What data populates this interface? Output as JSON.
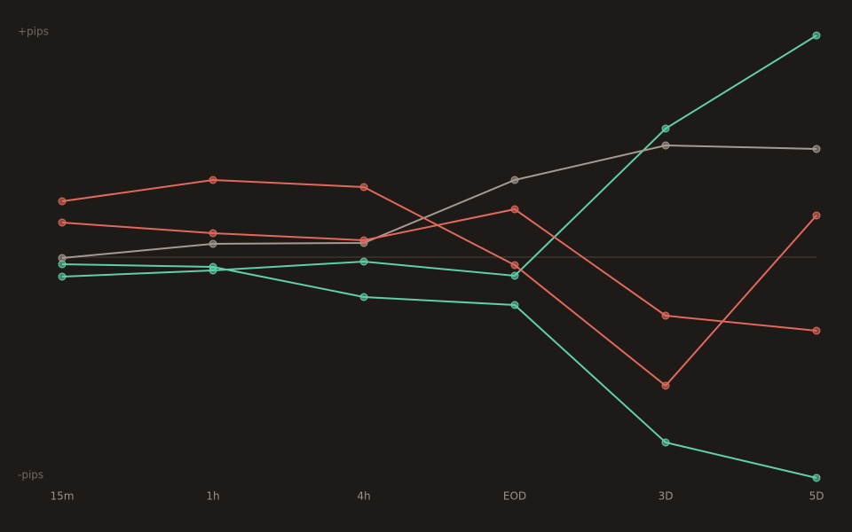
{
  "chart_data": {
    "type": "line",
    "y_label_top": "+pips",
    "y_label_bottom": "-pips",
    "categories": [
      "15m",
      "1h",
      "4h",
      "EOD",
      "3D",
      "5D"
    ],
    "ylim": [
      -100,
      100
    ],
    "baseline": 0,
    "series": [
      {
        "color": "#5fcfa6",
        "values": [
          -3.2,
          -4.4,
          -18,
          -21.6,
          -83.6,
          -99.6
        ]
      },
      {
        "color": "#5fcfa6",
        "values": [
          -8.8,
          -6,
          -2,
          -8.4,
          58,
          100
        ]
      },
      {
        "color": "#a49a91",
        "values": [
          -0.4,
          6,
          6.4,
          34.8,
          50.4,
          48.8
        ]
      },
      {
        "color": "#e0695c",
        "values": [
          25.2,
          34.8,
          31.6,
          -3.6,
          -58,
          18.8
        ]
      },
      {
        "color": "#e0695c",
        "values": [
          15.6,
          10.8,
          7.6,
          21.6,
          -26.4,
          -33.2
        ]
      }
    ]
  }
}
